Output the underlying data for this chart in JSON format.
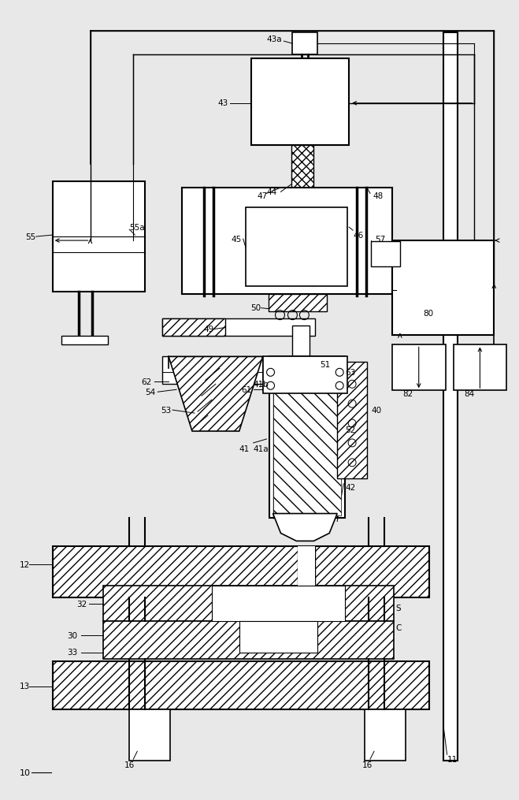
{
  "bg_color": "#e8e8e8",
  "fig_width": 6.42,
  "fig_height": 10.0
}
